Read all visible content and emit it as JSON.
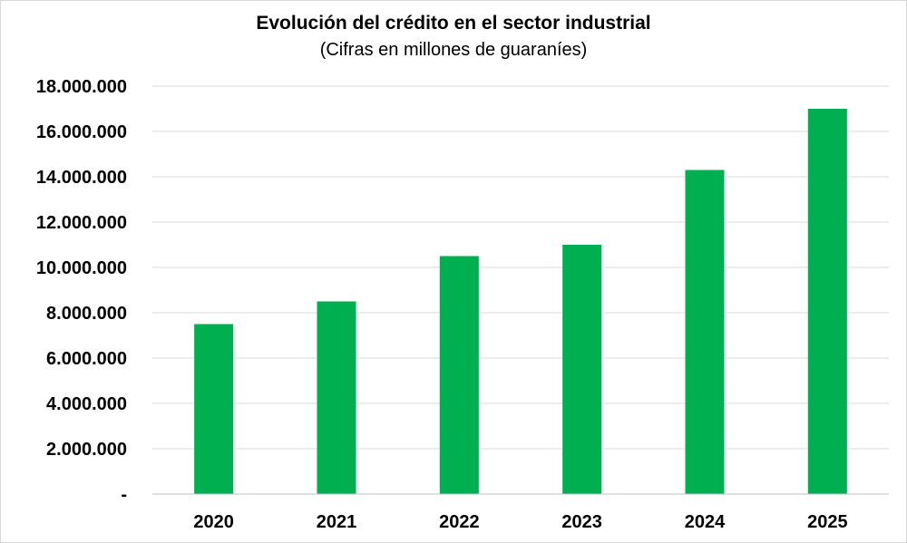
{
  "chart_data": {
    "type": "bar",
    "title": "Evolución del crédito en el sector industrial",
    "subtitle": "(Cifras en millones de guaraníes)",
    "xlabel": "",
    "ylabel": "",
    "categories": [
      "2020",
      "2021",
      "2022",
      "2023",
      "2024",
      "2025"
    ],
    "values": [
      7500000,
      8500000,
      10500000,
      11000000,
      14300000,
      17000000
    ],
    "ylim": [
      0,
      18000000
    ],
    "yticks": [
      0,
      2000000,
      4000000,
      6000000,
      8000000,
      10000000,
      12000000,
      14000000,
      16000000,
      18000000
    ],
    "ytick_labels": [
      "-",
      "2.000.000",
      "4.000.000",
      "6.000.000",
      "8.000.000",
      "10.000.000",
      "12.000.000",
      "14.000.000",
      "16.000.000",
      "18.000.000"
    ],
    "grid": true,
    "legend": "none",
    "colors": {
      "bar": "#00B050",
      "grid": "#d9d9d9",
      "axis": "#bfbfbf"
    }
  }
}
